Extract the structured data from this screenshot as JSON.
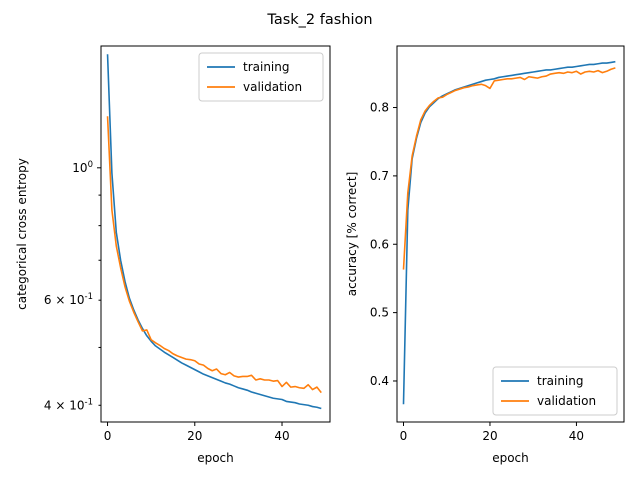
{
  "figure": {
    "suptitle": "Task_2 fashion"
  },
  "colors": {
    "training": "#1f77b4",
    "validation": "#ff7f0e",
    "axes": "#000000",
    "legend_border": "#cccccc"
  },
  "chart_data": [
    {
      "type": "line",
      "title": "",
      "xlabel": "epoch",
      "ylabel": "categorical cross entropy",
      "yscale": "log",
      "xlim": [
        -1.5,
        51
      ],
      "ylim": [
        0.375,
        1.6
      ],
      "xticks": [
        0,
        20,
        40
      ],
      "xtick_labels": [
        "0",
        "20",
        "40"
      ],
      "yticks_major": [
        1.0
      ],
      "ytick_major_labels": [
        "10^0"
      ],
      "yticks_labeled_minor": [
        0.4,
        0.6
      ],
      "ytick_minor_labels": [
        "4 × 10^-1",
        "6 × 10^-1"
      ],
      "yticks_minor_unlabeled": [
        0.5,
        0.7,
        0.8,
        0.9
      ],
      "legend": {
        "placement": "top-right"
      },
      "grid": false,
      "x": [
        0,
        1,
        2,
        3,
        4,
        5,
        6,
        7,
        8,
        9,
        10,
        11,
        12,
        13,
        14,
        15,
        16,
        17,
        18,
        19,
        20,
        21,
        22,
        23,
        24,
        25,
        26,
        27,
        28,
        29,
        30,
        31,
        32,
        33,
        34,
        35,
        36,
        37,
        38,
        39,
        40,
        41,
        42,
        43,
        44,
        45,
        46,
        47,
        48,
        49
      ],
      "series": [
        {
          "name": "training",
          "color": "#1f77b4",
          "values": [
            1.55,
            0.98,
            0.78,
            0.7,
            0.645,
            0.605,
            0.578,
            0.556,
            0.538,
            0.523,
            0.512,
            0.503,
            0.497,
            0.491,
            0.486,
            0.481,
            0.476,
            0.471,
            0.467,
            0.463,
            0.459,
            0.455,
            0.451,
            0.448,
            0.445,
            0.442,
            0.439,
            0.436,
            0.434,
            0.431,
            0.428,
            0.426,
            0.424,
            0.421,
            0.419,
            0.417,
            0.415,
            0.413,
            0.411,
            0.41,
            0.409,
            0.406,
            0.405,
            0.404,
            0.402,
            0.401,
            0.4,
            0.398,
            0.397,
            0.395
          ]
        },
        {
          "name": "validation",
          "color": "#ff7f0e",
          "values": [
            1.22,
            0.85,
            0.74,
            0.68,
            0.632,
            0.598,
            0.573,
            0.552,
            0.533,
            0.535,
            0.515,
            0.509,
            0.504,
            0.498,
            0.494,
            0.488,
            0.484,
            0.481,
            0.478,
            0.477,
            0.475,
            0.469,
            0.467,
            0.461,
            0.457,
            0.46,
            0.452,
            0.45,
            0.454,
            0.448,
            0.446,
            0.447,
            0.447,
            0.449,
            0.441,
            0.443,
            0.441,
            0.441,
            0.439,
            0.44,
            0.43,
            0.437,
            0.429,
            0.43,
            0.428,
            0.427,
            0.433,
            0.425,
            0.429,
            0.42
          ]
        }
      ]
    },
    {
      "type": "line",
      "title": "",
      "xlabel": "epoch",
      "ylabel": "accuracy [% correct]",
      "yscale": "linear",
      "xlim": [
        -1.5,
        51
      ],
      "ylim": [
        0.34,
        0.89
      ],
      "xticks": [
        0,
        20,
        40
      ],
      "xtick_labels": [
        "0",
        "20",
        "40"
      ],
      "yticks": [
        0.4,
        0.5,
        0.6,
        0.7,
        0.8
      ],
      "ytick_labels": [
        "0.4",
        "0.5",
        "0.6",
        "0.7",
        "0.8"
      ],
      "legend": {
        "placement": "bottom-right"
      },
      "grid": false,
      "x": [
        0,
        1,
        2,
        3,
        4,
        5,
        6,
        7,
        8,
        9,
        10,
        11,
        12,
        13,
        14,
        15,
        16,
        17,
        18,
        19,
        20,
        21,
        22,
        23,
        24,
        25,
        26,
        27,
        28,
        29,
        30,
        31,
        32,
        33,
        34,
        35,
        36,
        37,
        38,
        39,
        40,
        41,
        42,
        43,
        44,
        45,
        46,
        47,
        48,
        49
      ],
      "series": [
        {
          "name": "training",
          "color": "#1f77b4",
          "values": [
            0.366,
            0.65,
            0.725,
            0.755,
            0.778,
            0.792,
            0.801,
            0.807,
            0.813,
            0.817,
            0.82,
            0.823,
            0.826,
            0.828,
            0.83,
            0.832,
            0.834,
            0.836,
            0.838,
            0.84,
            0.841,
            0.842,
            0.844,
            0.845,
            0.846,
            0.847,
            0.848,
            0.849,
            0.85,
            0.851,
            0.852,
            0.853,
            0.854,
            0.855,
            0.855,
            0.856,
            0.857,
            0.858,
            0.859,
            0.859,
            0.86,
            0.861,
            0.862,
            0.863,
            0.863,
            0.864,
            0.865,
            0.865,
            0.866,
            0.867
          ]
        },
        {
          "name": "validation",
          "color": "#ff7f0e",
          "values": [
            0.563,
            0.675,
            0.729,
            0.758,
            0.782,
            0.795,
            0.803,
            0.809,
            0.814,
            0.815,
            0.819,
            0.822,
            0.825,
            0.827,
            0.829,
            0.83,
            0.832,
            0.833,
            0.834,
            0.832,
            0.828,
            0.839,
            0.84,
            0.841,
            0.842,
            0.842,
            0.843,
            0.844,
            0.841,
            0.845,
            0.844,
            0.843,
            0.845,
            0.846,
            0.849,
            0.85,
            0.851,
            0.85,
            0.852,
            0.851,
            0.853,
            0.849,
            0.852,
            0.853,
            0.852,
            0.854,
            0.851,
            0.853,
            0.856,
            0.858
          ]
        }
      ]
    }
  ]
}
